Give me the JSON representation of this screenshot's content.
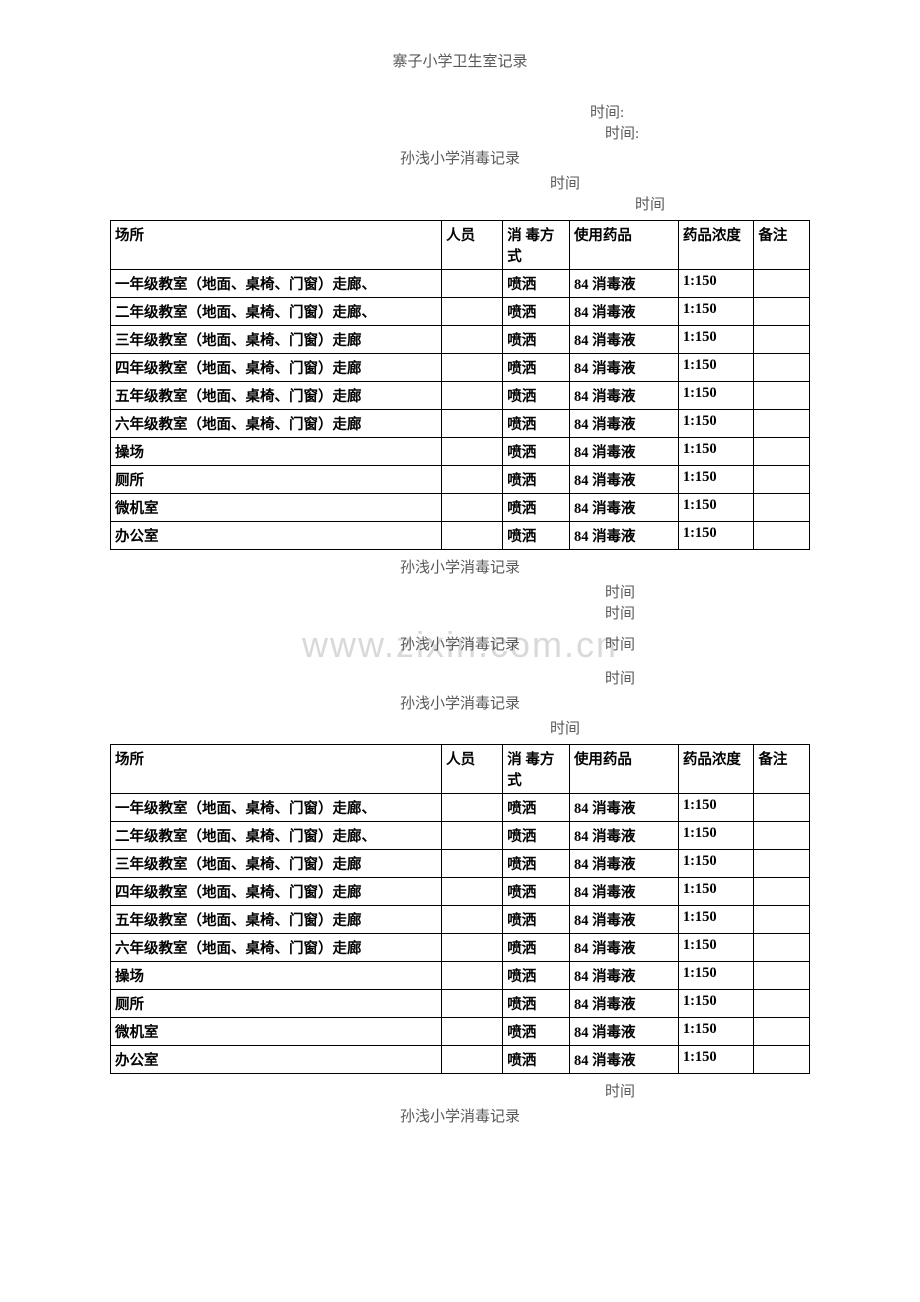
{
  "page_title": "寨子小学卫生室记录",
  "section_title": "孙浅小学消毒记录",
  "time_label": "时间:",
  "time_label_nocolon": "时间",
  "watermark": "www.zixin.com.cn",
  "table": {
    "headers": {
      "location": "场所",
      "person": "人员",
      "method": "消 毒方式",
      "chemical": "使用药品",
      "concentration": "药品浓度",
      "remark": "备注"
    },
    "rows": [
      {
        "location": "一年级教室（地面、桌椅、门窗）走廊、",
        "method": "喷洒",
        "chemical": "84 消毒液",
        "concentration": "1:150"
      },
      {
        "location": "二年级教室（地面、桌椅、门窗）走廊、",
        "method": "喷洒",
        "chemical": "84 消毒液",
        "concentration": "1:150"
      },
      {
        "location": "三年级教室（地面、桌椅、门窗）走廊",
        "method": "喷洒",
        "chemical": "84 消毒液",
        "concentration": "1:150"
      },
      {
        "location": "四年级教室（地面、桌椅、门窗）走廊",
        "method": "喷洒",
        "chemical": "84 消毒液",
        "concentration": "1:150"
      },
      {
        "location": "五年级教室（地面、桌椅、门窗）走廊",
        "method": "喷洒",
        "chemical": "84 消毒液",
        "concentration": "1:150"
      },
      {
        "location": "六年级教室（地面、桌椅、门窗）走廊",
        "method": "喷洒",
        "chemical": "84 消毒液",
        "concentration": "1:150"
      },
      {
        "location": "操场",
        "method": "喷洒",
        "chemical": "84 消毒液",
        "concentration": "1:150"
      },
      {
        "location": "厕所",
        "method": "喷洒",
        "chemical": "84 消毒液",
        "concentration": "1:150"
      },
      {
        "location": "微机室",
        "method": "喷洒",
        "chemical": "84 消毒液",
        "concentration": "1:150"
      },
      {
        "location": "办公室",
        "method": "喷洒",
        "chemical": "84 消毒液",
        "concentration": "1:150"
      }
    ]
  }
}
